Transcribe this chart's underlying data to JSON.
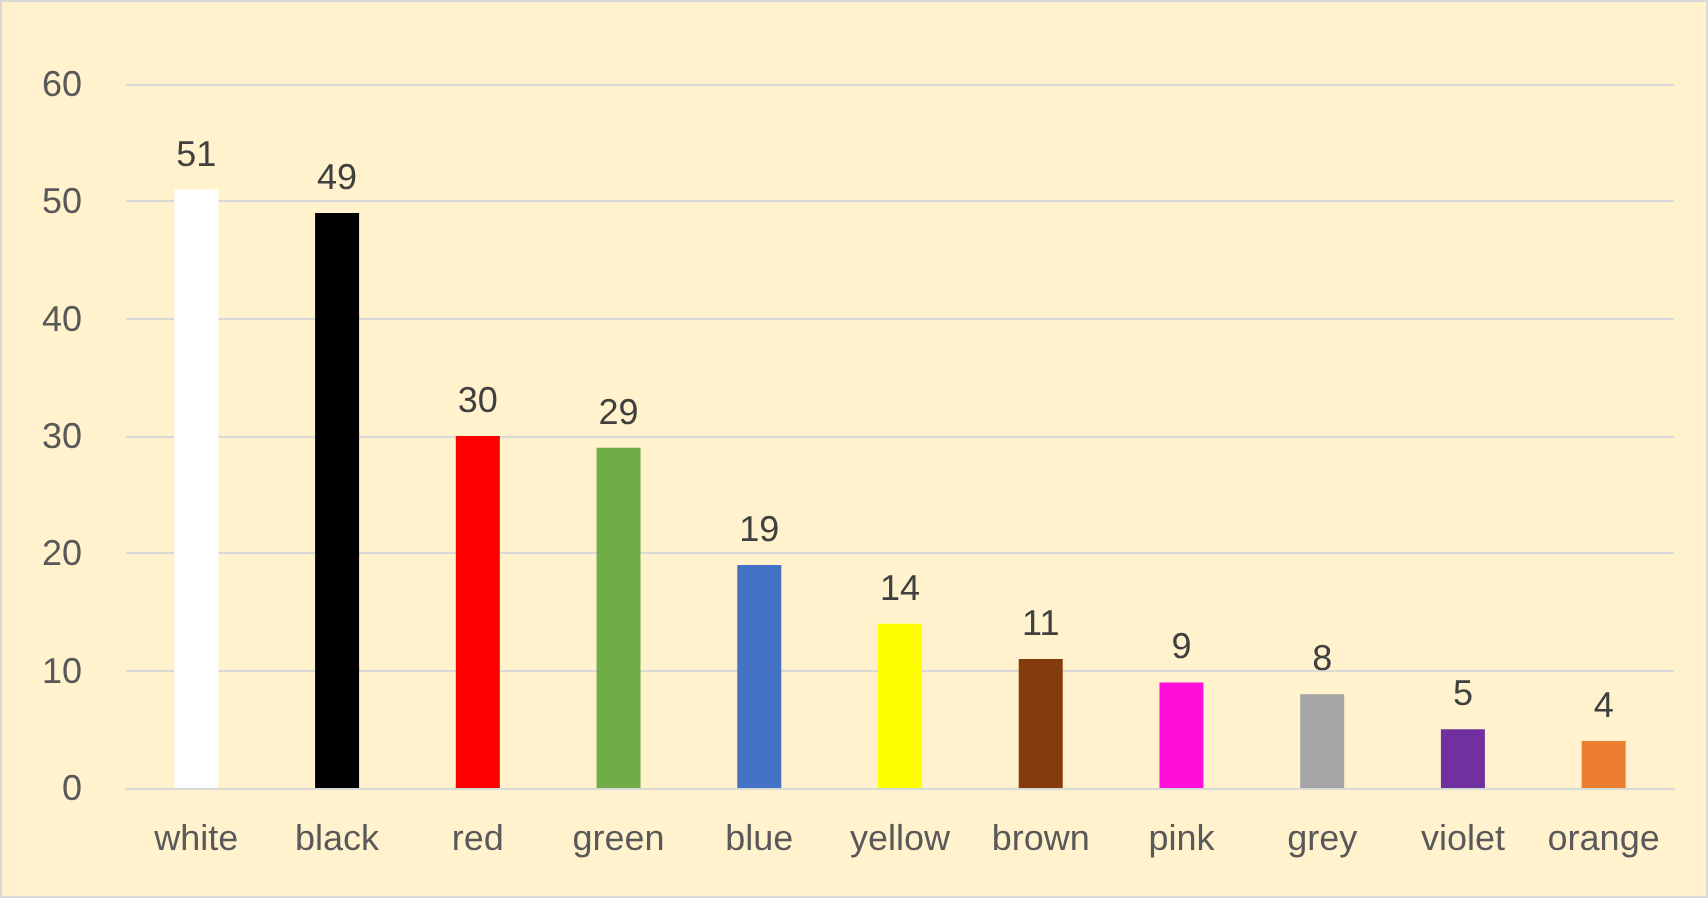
{
  "chart_data": {
    "type": "bar",
    "categories": [
      "white",
      "black",
      "red",
      "green",
      "blue",
      "yellow",
      "brown",
      "pink",
      "grey",
      "violet",
      "orange"
    ],
    "values": [
      51,
      49,
      30,
      29,
      19,
      14,
      11,
      9,
      8,
      5,
      4
    ],
    "colors": [
      "#ffffff",
      "#000000",
      "#ff0000",
      "#70ad47",
      "#4472c4",
      "#ffff00",
      "#843c0c",
      "#ff0fd8",
      "#a5a5a5",
      "#7030a0",
      "#ed7d31"
    ],
    "ylim": [
      0,
      60
    ],
    "yticks": [
      0,
      10,
      20,
      30,
      40,
      50,
      60
    ],
    "grid": "y",
    "data_labels": true
  }
}
